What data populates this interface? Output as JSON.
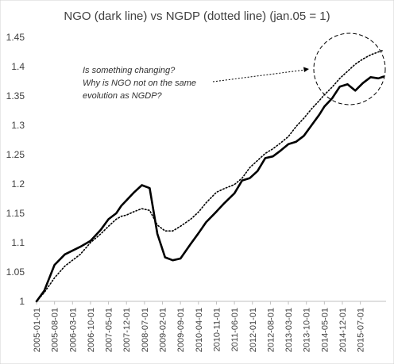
{
  "chart_data": {
    "type": "line",
    "title": "NGO (dark line) vs NGDP (dotted line) (jan.05 = 1)",
    "xlabel": "",
    "ylabel": "",
    "ylim": [
      1,
      1.45
    ],
    "yticks": [
      "1",
      "1.05",
      "1.1",
      "1.15",
      "1.2",
      "1.25",
      "1.3",
      "1.35",
      "1.4",
      "1.45"
    ],
    "grid": false,
    "legend": "none",
    "x_tick_labels": [
      "2005-01-01",
      "2005-08-01",
      "2006-03-01",
      "2006-10-01",
      "2007-05-01",
      "2007-12-01",
      "2008-07-01",
      "2009-02-01",
      "2009-09-01",
      "2010-04-01",
      "2010-11-01",
      "2011-06-01",
      "2012-01-01",
      "2012-08-01",
      "2013-03-01",
      "2013-10-01",
      "2014-05-01",
      "2014-12-01",
      "2015-07-01"
    ],
    "series": [
      {
        "style": "solid",
        "color": "#000000",
        "x": [
          "2005-01",
          "2005-04",
          "2005-08",
          "2005-12",
          "2006-06",
          "2006-10",
          "2007-02",
          "2007-05",
          "2007-08",
          "2007-10",
          "2007-12",
          "2008-03",
          "2008-06",
          "2008-09",
          "2008-12",
          "2009-03",
          "2009-06",
          "2009-09",
          "2010-01",
          "2010-04",
          "2010-07",
          "2010-11",
          "2011-02",
          "2011-06",
          "2011-09",
          "2011-12",
          "2012-03",
          "2012-06",
          "2012-09",
          "2012-12",
          "2013-03",
          "2013-06",
          "2013-09",
          "2013-12",
          "2014-03",
          "2014-05",
          "2014-08",
          "2014-11",
          "2015-02",
          "2015-05",
          "2015-08",
          "2015-11",
          "2016-02",
          "2016-04"
        ],
        "values": [
          1.0,
          1.018,
          1.062,
          1.08,
          1.093,
          1.103,
          1.122,
          1.14,
          1.15,
          1.163,
          1.172,
          1.186,
          1.198,
          1.193,
          1.115,
          1.075,
          1.07,
          1.073,
          1.098,
          1.116,
          1.135,
          1.153,
          1.167,
          1.184,
          1.206,
          1.21,
          1.222,
          1.244,
          1.247,
          1.257,
          1.268,
          1.272,
          1.282,
          1.3,
          1.318,
          1.332,
          1.346,
          1.366,
          1.37,
          1.359,
          1.372,
          1.382,
          1.38,
          1.383
        ]
      },
      {
        "style": "dotted",
        "color": "#000000",
        "x": [
          "2005-01",
          "2005-04",
          "2005-08",
          "2005-12",
          "2006-06",
          "2006-10",
          "2007-02",
          "2007-05",
          "2007-08",
          "2007-10",
          "2007-12",
          "2008-03",
          "2008-06",
          "2008-09",
          "2008-12",
          "2009-03",
          "2009-06",
          "2009-09",
          "2010-01",
          "2010-04",
          "2010-07",
          "2010-11",
          "2011-02",
          "2011-06",
          "2011-09",
          "2011-12",
          "2012-03",
          "2012-06",
          "2012-09",
          "2012-12",
          "2013-03",
          "2013-06",
          "2013-09",
          "2013-12",
          "2014-03",
          "2014-05",
          "2014-08",
          "2014-11",
          "2015-02",
          "2015-05",
          "2015-08",
          "2015-11",
          "2016-02",
          "2016-04"
        ],
        "values": [
          1.0,
          1.015,
          1.04,
          1.06,
          1.08,
          1.1,
          1.115,
          1.128,
          1.14,
          1.145,
          1.147,
          1.153,
          1.158,
          1.155,
          1.13,
          1.12,
          1.12,
          1.128,
          1.14,
          1.152,
          1.168,
          1.186,
          1.192,
          1.199,
          1.21,
          1.228,
          1.24,
          1.252,
          1.26,
          1.27,
          1.281,
          1.298,
          1.312,
          1.328,
          1.342,
          1.352,
          1.365,
          1.38,
          1.392,
          1.404,
          1.413,
          1.42,
          1.425,
          1.428
        ]
      }
    ],
    "annotations": [
      "Is something changing?",
      "Why is NGO  not on the same",
      "evolution as NGDP?"
    ]
  }
}
